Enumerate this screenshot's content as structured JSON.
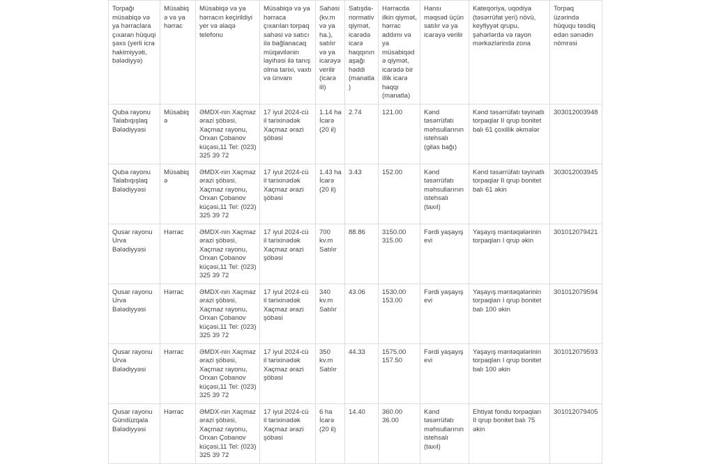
{
  "colors": {
    "background": "#ffffff",
    "border": "#dedede",
    "text": "#3f3f3f"
  },
  "table": {
    "headers": [
      "Torpağı müsabiqə və ya hərraclara çıxaran hüquqi şəxs (yerli icra hakimiyyəti, bələdiyyə)",
      "Müsabiqə və ya hərrac",
      "Müsabiqə və ya hərracın keçirildiyi yer və əlaqə telefonu",
      "Müsabiqə və ya hərraca çıxarılan torpaq sahəsi və satıcı ilə bağlanacaq müqavilənin layihəsi ilə tanış olma tarixi, vaxtı və ünvanı",
      "Sahəsi (kv.m və ya ha.), satılır və ya icarəyə verilir (icarə ili)",
      "Satışda-normativ qiymət, icarədə icarə haqqının aşağı həddi (manatla)",
      "Hərracda ilkin qiymət, hərrac addımı və ya müsabiqədə qiymət, icarədə bir illik icarə haqqı (manatla)",
      "Hansı məqsəd üçün satılır və ya icarəyə verilir",
      "Kateqoriya, uqodiya (təsərrüfat yeri) növü, keyfiyyət qrupu, şəhərlərdə və rayon mərkəzlərində zona",
      "Torpaq üzərində hüququ təsdiq edən sənədin nömrəsi"
    ],
    "rows": [
      {
        "cells": [
          "Quba rayonu Talabıqışlaq Bələdiyyəsi",
          "Müsabiqə",
          "ƏMDX-nin Xaçmaz ərazi şöbəsi, Xaçmaz rayonu, Orxan Çobanov küçəsi,11 Tel: (023) 325 39 72",
          "17 iyul 2024-cü il tarixinədək Xaçmaz ərazi şöbəsi",
          "1.14 ha\nİcarə (20 il)",
          "2.74",
          "121.00",
          "Kənd təsərrüfatı məhsullarının istehsalı (gilas bağı)",
          "Kənd təsərrüfatı təyinatlı torpaqlar II qrup bonitet balı 61 çoxillik əkmələr",
          "303012003948"
        ]
      },
      {
        "cells": [
          "Quba rayonu Talabıqışlaq Bələdiyyəsi",
          "Müsabiqə",
          "ƏMDX-nin Xaçmaz ərazi şöbəsi, Xaçmaz rayonu, Orxan Çobanov küçəsi,11 Tel: (023) 325 39 72",
          "17 iyul 2024-cü il tarixinədək Xaçmaz ərazi şöbəsi",
          "1.43 ha\nİcarə (20 il)",
          "3.43",
          "152.00",
          "Kənd təsərrüfatı məhsullarının istehsalı (taxıl)",
          "Kənd təsərrüfatı təyinatlı torpaqlar II qrup bonitet balı 61 əkin",
          "303012003945"
        ]
      },
      {
        "cells": [
          "Qusar rayonu Urva Bələdiyyəsi",
          "Hərrac",
          "ƏMDX-nin Xaçmaz ərazi şöbəsi, Xaçmaz rayonu, Orxan Çobanov küçəsi,11 Tel: (023) 325 39 72",
          "17 iyul 2024-cü il tarixinədək Xaçmaz ərazi şöbəsi",
          "700 kv.m\nSatılır",
          "88.86",
          "3150.00\n315.00",
          "Fərdi yaşayış evi",
          "Yaşayış məntəqələrinin torpaqları I qrup əkin",
          "301012079421"
        ]
      },
      {
        "cells": [
          "Qusar rayonu Urva Bələdiyyəsi",
          "Hərrac",
          "ƏMDX-nin Xaçmaz ərazi şöbəsi, Xaçmaz rayonu, Orxan Çobanov küçəsi,11 Tel: (023) 325 39 72",
          "17 iyul 2024-cü il tarixinədək Xaçmaz ərazi şöbəsi",
          "340 kv.m\nSatılır",
          "43.06",
          "1530.00\n153.00",
          "Fərdi yaşayış evi",
          "Yaşayış məntəqələrinin torpaqları I qrup bonitet balı 100 əkin",
          "301012079594"
        ]
      },
      {
        "cells": [
          "Qusar rayonu Urva Bələdiyyəsi",
          "Hərrac",
          "ƏMDX-nin Xaçmaz ərazi şöbəsi, Xaçmaz rayonu, Orxan Çobanov küçəsi,11 Tel: (023) 325 39 72",
          "17 iyul 2024-cü il tarixinədək Xaçmaz ərazi şöbəsi",
          "350 kv.m\nSatılır",
          "44.33",
          "1575.00\n157.50",
          "Fərdi yaşayış evi",
          "Yaşayış məntəqələrinin torpaqları I qrup bonitet balı 100 əkin",
          "301012079593"
        ]
      },
      {
        "cells": [
          "Qusar rayonu Gündüzqala Bələdiyyəsi",
          "Hərrac",
          "ƏMDX-nin Xaçmaz ərazi şöbəsi, Xaçmaz rayonu, Orxan Çobanov küçəsi,11 Tel: (023) 325 39 72",
          "17 iyul 2024-cü il tarixinədək Xaçmaz ərazi şöbəsi",
          "6 ha\nİcarə (20 il)",
          "14.40",
          "360.00\n36.00",
          "Kənd təsərrüfatı məhsullarının istehsalı (taxıl)",
          "Ehtiyat fondu torpaqları II qrup bonitet balı 75 əkin",
          "301012079405"
        ]
      }
    ]
  }
}
